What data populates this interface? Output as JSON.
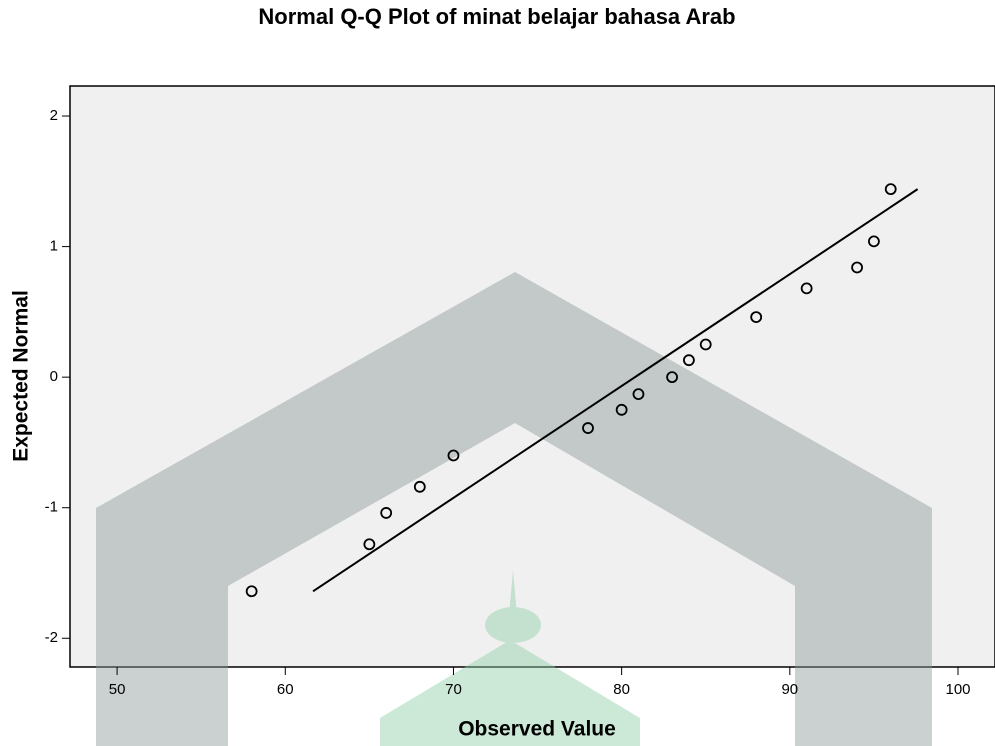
{
  "chart_data": {
    "type": "scatter",
    "title": "Normal Q-Q Plot of minat belajar bahasa Arab",
    "x_label": "Observed Value",
    "y_label": "Expected Normal",
    "series": [
      {
        "color": "#000000",
        "x": [
          58,
          65,
          66,
          68,
          70,
          78,
          80,
          81,
          83,
          84,
          85,
          88,
          91,
          94,
          95,
          96
        ],
        "values": [
          -1.64,
          -1.28,
          -1.04,
          -0.84,
          -0.6,
          -0.39,
          -0.25,
          -0.13,
          0,
          0.13,
          0.25,
          0.46,
          0.68,
          0.84,
          1.04,
          1.44
        ]
      }
    ],
    "reference_line": {
      "color": "#000000",
      "x": [
        61.65,
        97.6
      ],
      "y": [
        -1.64,
        1.44
      ]
    },
    "xlim": [
      47.2,
      102.2
    ],
    "ylim": [
      -2.22,
      2.23
    ],
    "xticks": [
      50,
      60,
      70,
      80,
      90,
      100
    ],
    "yticks": [
      -2,
      -1,
      0,
      1,
      2
    ]
  }
}
